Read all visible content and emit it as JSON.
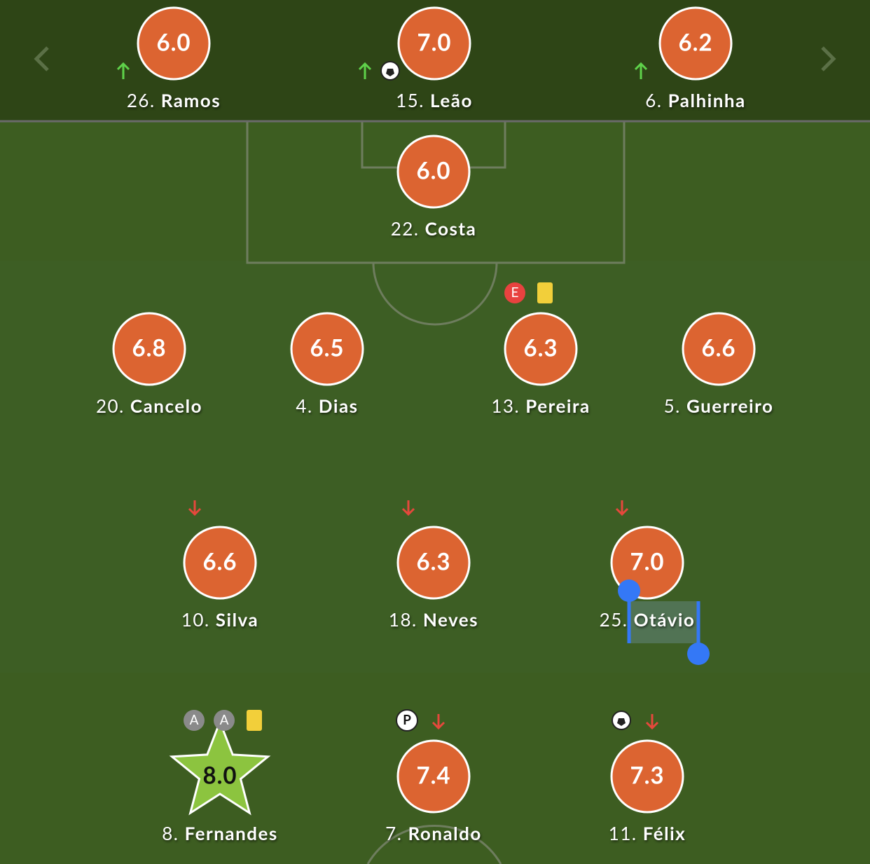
{
  "substitutes": [
    {
      "number": "26.",
      "name": "Ramos",
      "rating": "6.0"
    },
    {
      "number": "15.",
      "name": "Leão",
      "rating": "7.0"
    },
    {
      "number": "6.",
      "name": "Palhinha",
      "rating": "6.2"
    }
  ],
  "lineup": [
    {
      "number": "22.",
      "name": "Costa",
      "rating": "6.0"
    },
    {
      "number": "20.",
      "name": "Cancelo",
      "rating": "6.8"
    },
    {
      "number": "4.",
      "name": "Dias",
      "rating": "6.5"
    },
    {
      "number": "13.",
      "name": "Pereira",
      "rating": "6.3",
      "badges": [
        "E"
      ]
    },
    {
      "number": "5.",
      "name": "Guerreiro",
      "rating": "6.6"
    },
    {
      "number": "10.",
      "name": "Silva",
      "rating": "6.6"
    },
    {
      "number": "18.",
      "name": "Neves",
      "rating": "6.3"
    },
    {
      "number": "25.",
      "name": "Otávio",
      "rating": "7.0"
    },
    {
      "number": "8.",
      "name": "Fernandes",
      "rating": "8.0",
      "badges": [
        "A",
        "A"
      ]
    },
    {
      "number": "7.",
      "name": "Ronaldo",
      "rating": "7.4",
      "badges": [
        "P"
      ]
    },
    {
      "number": "11.",
      "name": "Félix",
      "rating": "7.3"
    }
  ]
}
